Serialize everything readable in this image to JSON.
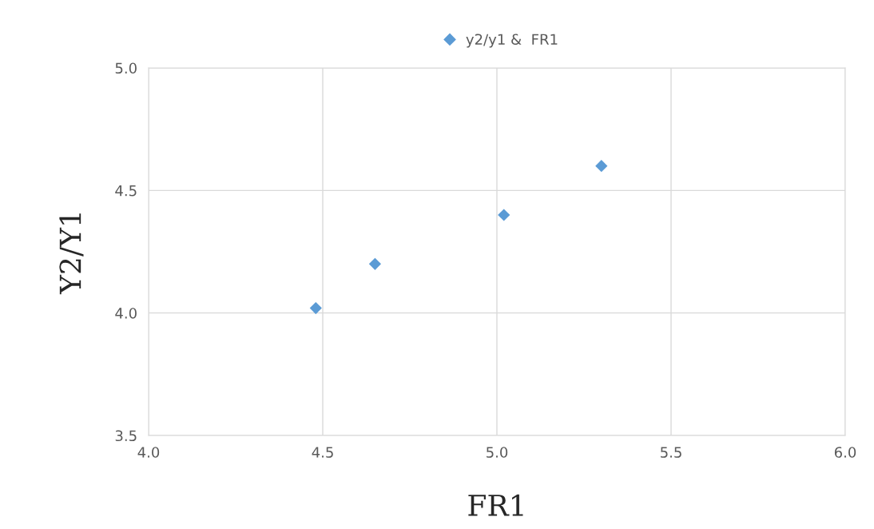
{
  "chart_data": {
    "type": "scatter",
    "xlabel": "FR1",
    "ylabel": "Y2/Y1",
    "x": [
      4.48,
      4.65,
      5.02,
      5.3
    ],
    "series": [
      {
        "name": "y2/y1 &  FR1",
        "color": "#5b9bd5",
        "values": [
          4.02,
          4.2,
          4.4,
          4.6
        ]
      }
    ],
    "xlim": [
      4.0,
      6.0
    ],
    "ylim": [
      3.5,
      5.0
    ],
    "xticks": [
      {
        "value": 4.0,
        "label": "4.0"
      },
      {
        "value": 4.5,
        "label": "4.5"
      },
      {
        "value": 5.0,
        "label": "5.0"
      },
      {
        "value": 5.5,
        "label": "5.5"
      },
      {
        "value": 6.0,
        "label": "6.0"
      }
    ],
    "yticks": [
      {
        "value": 3.5,
        "label": "3.5"
      },
      {
        "value": 4.0,
        "label": "4.0"
      },
      {
        "value": 4.5,
        "label": "4.5"
      },
      {
        "value": 5.0,
        "label": "5.0"
      }
    ],
    "grid": true,
    "legend": "top",
    "marker": "diamond"
  }
}
